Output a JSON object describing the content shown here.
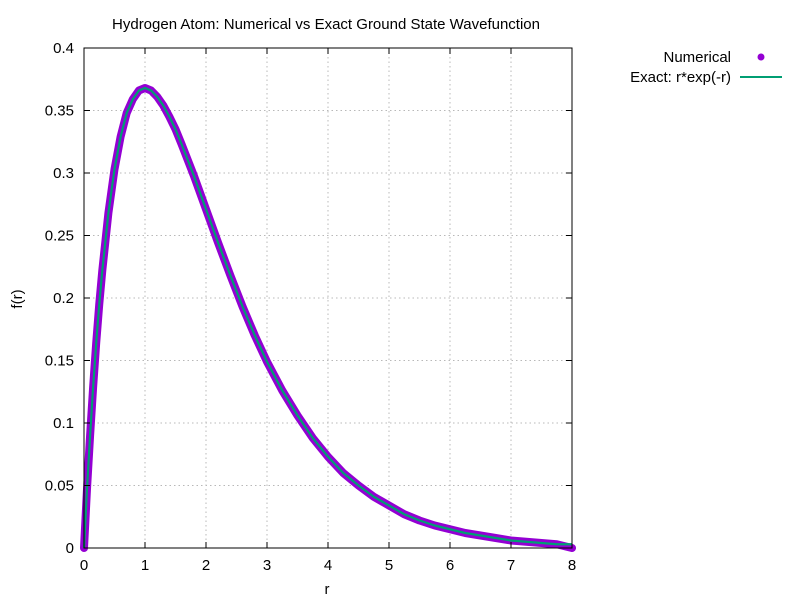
{
  "chart_data": {
    "type": "line",
    "title": "Hydrogen Atom: Numerical vs Exact Ground State Wavefunction",
    "xlabel": "r",
    "ylabel": "f(r)",
    "xlim": [
      0,
      8
    ],
    "ylim": [
      0,
      0.4
    ],
    "xticks": [
      "0",
      "1",
      "2",
      "3",
      "4",
      "5",
      "6",
      "7",
      "8"
    ],
    "yticks": [
      "0",
      "0.05",
      "0.1",
      "0.15",
      "0.2",
      "0.25",
      "0.3",
      "0.35",
      "0.4"
    ],
    "grid": true,
    "legend_position": "top-right, outside plot",
    "series": [
      {
        "name": "Numerical",
        "style": "points",
        "color": "#9400d3",
        "x": [
          0,
          0.05,
          0.1,
          0.15,
          0.2,
          0.25,
          0.3,
          0.4,
          0.5,
          0.6,
          0.7,
          0.8,
          0.9,
          1.0,
          1.1,
          1.2,
          1.3,
          1.4,
          1.5,
          1.6,
          1.8,
          2.0,
          2.2,
          2.4,
          2.6,
          2.8,
          3.0,
          3.25,
          3.5,
          3.75,
          4.0,
          4.25,
          4.5,
          4.75,
          5.0,
          5.25,
          5.5,
          5.75,
          6.0,
          6.25,
          6.5,
          6.75,
          7.0,
          7.25,
          7.5,
          7.75,
          8.0
        ],
        "y": [
          0,
          0.048,
          0.09,
          0.129,
          0.164,
          0.195,
          0.222,
          0.268,
          0.303,
          0.329,
          0.348,
          0.359,
          0.366,
          0.368,
          0.366,
          0.361,
          0.354,
          0.345,
          0.335,
          0.323,
          0.298,
          0.271,
          0.244,
          0.218,
          0.193,
          0.17,
          0.149,
          0.126,
          0.106,
          0.088,
          0.073,
          0.06,
          0.05,
          0.041,
          0.034,
          0.027,
          0.022,
          0.018,
          0.015,
          0.012,
          0.01,
          0.008,
          0.006,
          0.005,
          0.004,
          0.003,
          0.0
        ]
      },
      {
        "name": "Exact: r*exp(-r)",
        "style": "line",
        "color": "#009e73",
        "x": [
          0,
          0.05,
          0.1,
          0.15,
          0.2,
          0.25,
          0.3,
          0.4,
          0.5,
          0.6,
          0.7,
          0.8,
          0.9,
          1.0,
          1.1,
          1.2,
          1.3,
          1.4,
          1.5,
          1.6,
          1.8,
          2.0,
          2.2,
          2.4,
          2.6,
          2.8,
          3.0,
          3.25,
          3.5,
          3.75,
          4.0,
          4.25,
          4.5,
          4.75,
          5.0,
          5.25,
          5.5,
          5.75,
          6.0,
          6.25,
          6.5,
          6.75,
          7.0,
          7.25,
          7.5,
          7.75,
          8.0
        ],
        "y": [
          0,
          0.048,
          0.09,
          0.129,
          0.164,
          0.195,
          0.222,
          0.268,
          0.303,
          0.329,
          0.348,
          0.359,
          0.366,
          0.368,
          0.366,
          0.361,
          0.354,
          0.345,
          0.335,
          0.323,
          0.298,
          0.271,
          0.244,
          0.218,
          0.193,
          0.17,
          0.149,
          0.126,
          0.106,
          0.088,
          0.073,
          0.06,
          0.05,
          0.041,
          0.034,
          0.027,
          0.022,
          0.018,
          0.015,
          0.012,
          0.01,
          0.008,
          0.006,
          0.005,
          0.004,
          0.003,
          0.003
        ]
      }
    ]
  }
}
